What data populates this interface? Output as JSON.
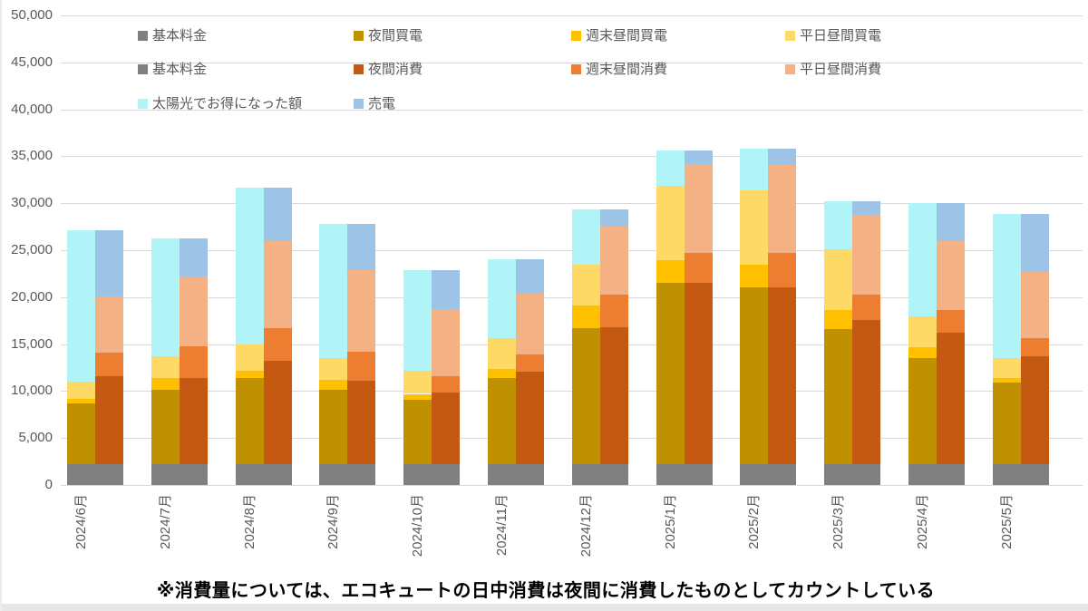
{
  "chart_data": {
    "type": "bar",
    "variant": "paired-stacked-columns",
    "title": "",
    "xlabel": "",
    "ylabel": "",
    "ylim": [
      0,
      50000
    ],
    "ytick_step": 5000,
    "ytick_labels": [
      "0",
      "5,000",
      "10,000",
      "15,000",
      "20,000",
      "25,000",
      "30,000",
      "35,000",
      "40,000",
      "45,000",
      "50,000"
    ],
    "grid": true,
    "legend_position": "top-inside",
    "x_label_rotation": -90,
    "categories": [
      "2024/6月",
      "2024/7月",
      "2024/8月",
      "2024/9月",
      "2024/10月",
      "2024/11月",
      "2024/12月",
      "2025/1月",
      "2025/2月",
      "2025/3月",
      "2025/4月",
      "2025/5月"
    ],
    "left_stack": [
      {
        "name": "基本料金",
        "color": "#808080",
        "values": [
          2200,
          2200,
          2200,
          2200,
          2200,
          2200,
          2200,
          2200,
          2200,
          2200,
          2200,
          2200
        ]
      },
      {
        "name": "夜間買電",
        "color": "#BF9000",
        "values": [
          6500,
          7900,
          9200,
          7900,
          6900,
          9200,
          14500,
          19300,
          18800,
          14400,
          11300,
          8700
        ]
      },
      {
        "name": "週末昼間買電",
        "color": "#FFC000",
        "values": [
          500,
          1300,
          800,
          1100,
          600,
          1000,
          2400,
          2400,
          2500,
          2000,
          1200,
          500
        ]
      },
      {
        "name": "平日昼間買電",
        "color": "#FFD966",
        "values": [
          1800,
          2300,
          2800,
          2300,
          2500,
          3200,
          4400,
          8000,
          7900,
          6500,
          3300,
          2100
        ]
      },
      {
        "name": "太陽光でお得になった額",
        "color": "#B1F4F7",
        "values": [
          16100,
          12600,
          16700,
          14300,
          10700,
          8400,
          5800,
          3700,
          4400,
          5100,
          12000,
          15400
        ]
      }
    ],
    "right_stack": [
      {
        "name": "基本料金",
        "color": "#808080",
        "values": [
          2200,
          2200,
          2200,
          2200,
          2200,
          2200,
          2200,
          2200,
          2200,
          2200,
          2200,
          2200
        ]
      },
      {
        "name": "夜間消費",
        "color": "#C45911",
        "values": [
          9400,
          9200,
          11000,
          8900,
          7600,
          9900,
          14600,
          19300,
          18800,
          15400,
          14000,
          11500
        ]
      },
      {
        "name": "週末昼間消費",
        "color": "#ED7D31",
        "values": [
          2500,
          3400,
          3500,
          3100,
          1800,
          1800,
          3500,
          3200,
          3700,
          2700,
          2400,
          1900
        ]
      },
      {
        "name": "平日昼間消費",
        "color": "#F4B183",
        "values": [
          6000,
          7400,
          9300,
          8700,
          7100,
          6500,
          7200,
          9500,
          9400,
          8500,
          7400,
          7100
        ]
      },
      {
        "name": "売電",
        "color": "#9DC3E6",
        "values": [
          7000,
          4100,
          5700,
          4900,
          4200,
          3600,
          1800,
          1400,
          1700,
          1400,
          4000,
          6200
        ]
      }
    ],
    "legend_rows": [
      [
        {
          "label": "基本料金",
          "color": "#808080"
        },
        {
          "label": "夜間買電",
          "color": "#BF9000"
        },
        {
          "label": "週末昼間買電",
          "color": "#FFC000"
        },
        {
          "label": "平日昼間買電",
          "color": "#FFD966"
        }
      ],
      [
        {
          "label": "基本料金",
          "color": "#808080"
        },
        {
          "label": "夜間消費",
          "color": "#C45911"
        },
        {
          "label": "週末昼間消費",
          "color": "#ED7D31"
        },
        {
          "label": "平日昼間消費",
          "color": "#F4B183"
        }
      ],
      [
        {
          "label": "太陽光でお得になった額",
          "color": "#B1F4F7"
        },
        {
          "label": "売電",
          "color": "#9DC3E6"
        }
      ]
    ],
    "note": "※消費量については、エコキュートの日中消費は夜間に消費したものとしてカウントしている"
  },
  "colors": {
    "gridline": "#d9d9d9",
    "axis_text": "#595959",
    "note_text": "#000000",
    "background": "#ffffff",
    "window_edge": "#e7e7e7"
  }
}
